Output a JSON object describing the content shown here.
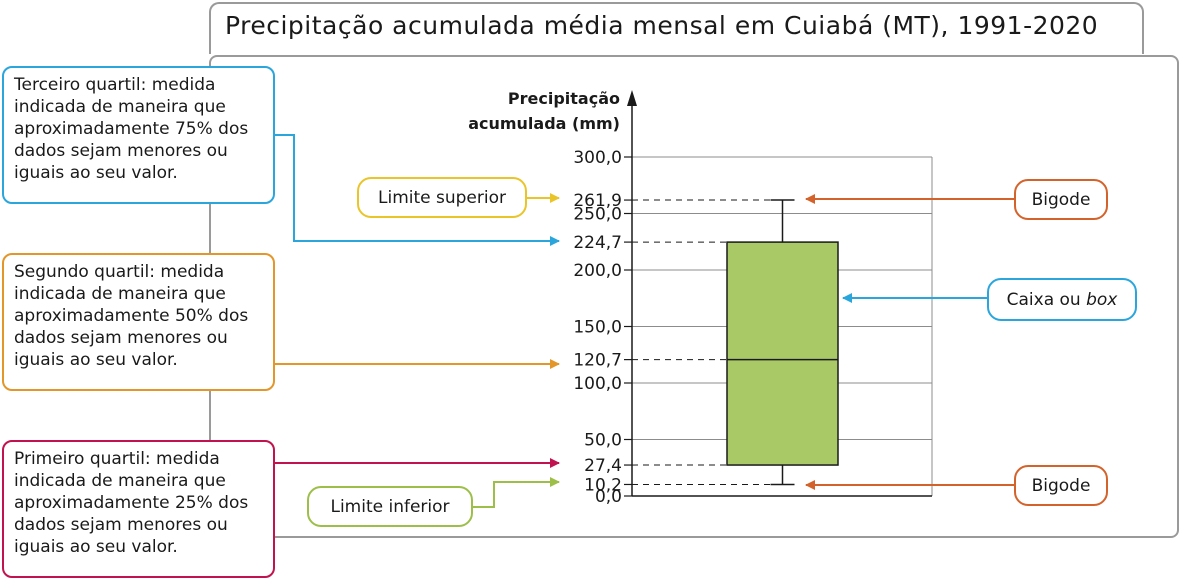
{
  "title": "Precipitação acumulada média mensal em Cuiabá (MT), 1991-2020",
  "chart_data": {
    "type": "boxplot",
    "ylabel": [
      "Precipitação",
      "acumulada (mm)"
    ],
    "ylim": [
      0,
      300
    ],
    "yticks": [
      {
        "value": 0,
        "label": "0,0"
      },
      {
        "value": 50,
        "label": "50,0"
      },
      {
        "value": 100,
        "label": "100,0"
      },
      {
        "value": 150,
        "label": "150,0"
      },
      {
        "value": 200,
        "label": "200,0"
      },
      {
        "value": 250,
        "label": "250,0"
      },
      {
        "value": 300,
        "label": "300,0"
      }
    ],
    "grid": true,
    "box": {
      "lower_limit": 10.2,
      "q1": 27.4,
      "median": 120.7,
      "q3": 224.7,
      "upper_limit": 261.9
    },
    "marked_values": [
      {
        "value": 261.9,
        "label": "261,9"
      },
      {
        "value": 224.7,
        "label": "224,7"
      },
      {
        "value": 120.7,
        "label": "120,7"
      },
      {
        "value": 27.4,
        "label": "27,4"
      },
      {
        "value": 10.2,
        "label": "10,2"
      }
    ],
    "box_color": "#a9c967"
  },
  "callouts": {
    "q3": "Terceiro quartil: medida indicada de maneira que aproximadamente 75% dos dados sejam menores ou iguais ao seu valor.",
    "q2": "Segundo quartil: medida indicada de maneira que aproximadamente 50% dos dados sejam menores ou iguais ao seu valor.",
    "q1": "Primeiro quartil: medida indicada de maneira que aproximadamente 25% dos dados sejam menores ou iguais ao seu valor.",
    "upper_limit": "Limite superior",
    "lower_limit": "Limite inferior",
    "whisker_top": "Bigode",
    "whisker_bottom": "Bigode",
    "box_prefix": "Caixa ou ",
    "box_italic": "box"
  },
  "colors": {
    "blue": "#2aa6dc",
    "orange": "#e3962a",
    "crimson": "#c0134f",
    "yellow": "#eac52a",
    "green": "#9dbf4a",
    "redorange": "#d4632b",
    "frame": "#9a9a9a"
  }
}
